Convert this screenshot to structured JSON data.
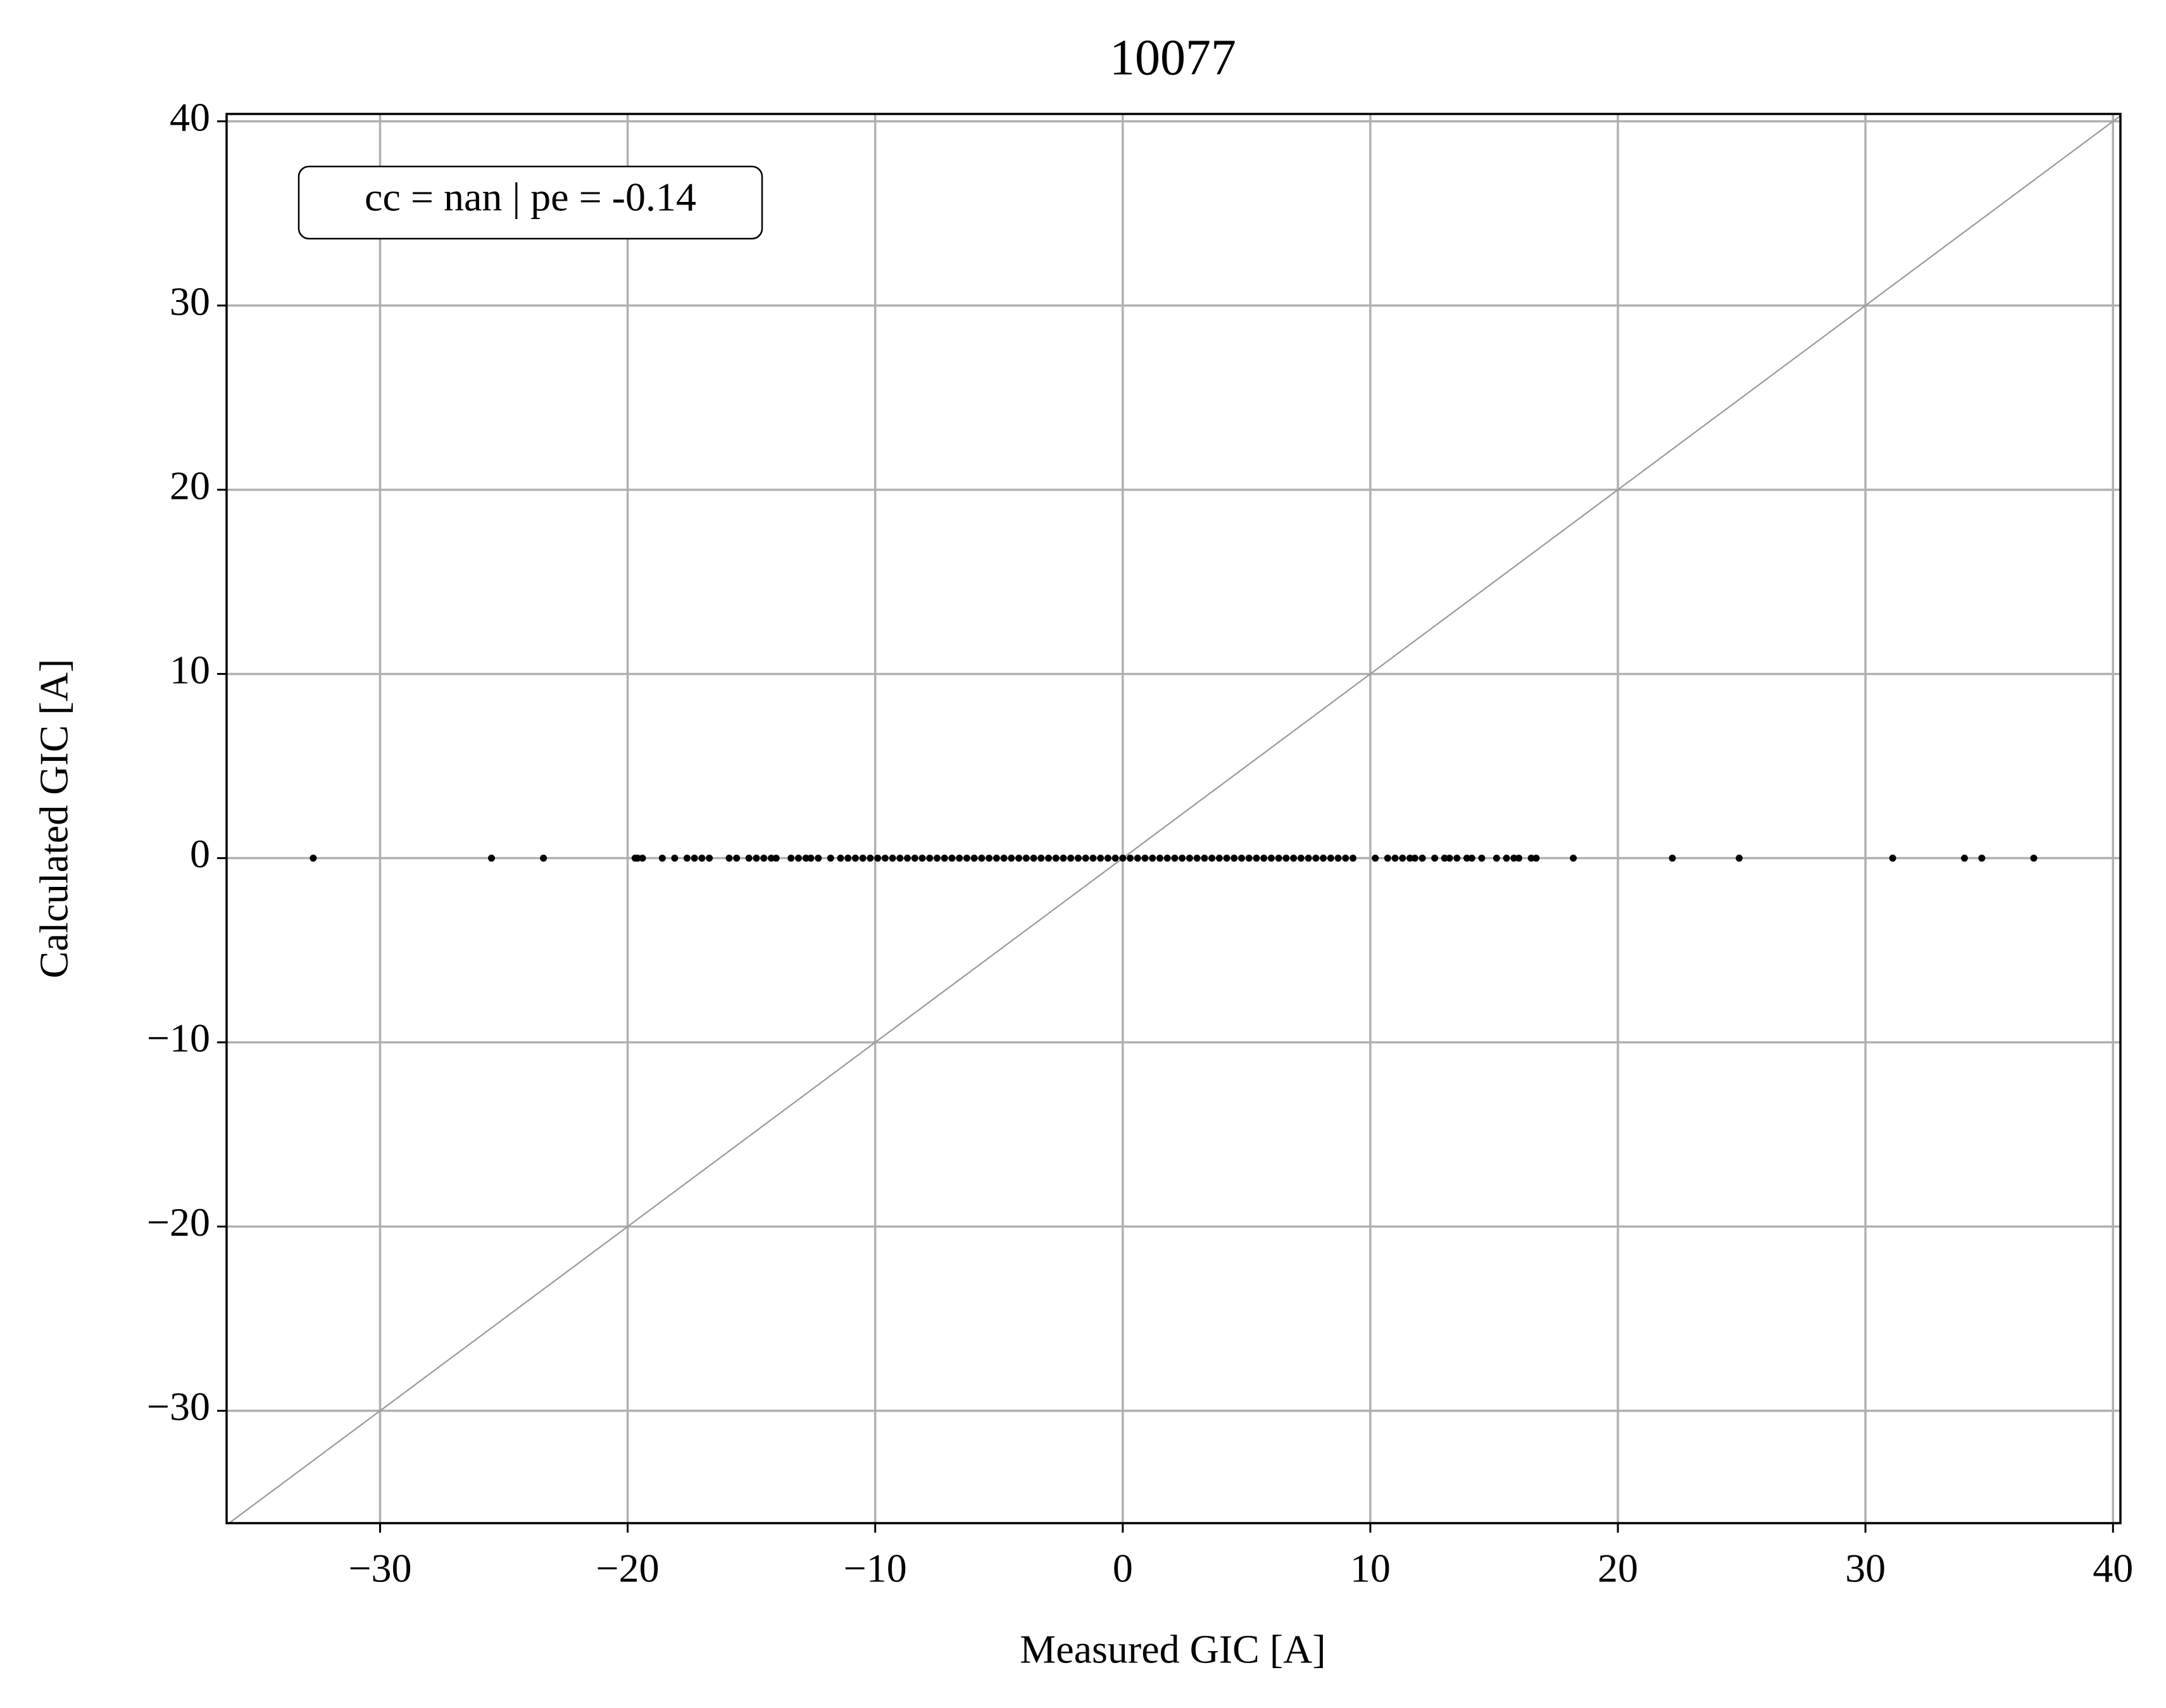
{
  "chart_data": {
    "type": "scatter",
    "title": "10077",
    "x_label": "Measured GIC [A]",
    "y_label": "Calculated GIC [A]",
    "annotation": "cc = nan | pe = -0.14",
    "color": "#000000",
    "grid": true,
    "xlim": [
      -36.2,
      40.3
    ],
    "ylim": [
      -36.1,
      40.4
    ],
    "xticks": [
      {
        "value": -30,
        "label": "−30"
      },
      {
        "value": -20,
        "label": "−20"
      },
      {
        "value": -10,
        "label": "−10"
      },
      0,
      10,
      20,
      30,
      40
    ],
    "yticks": [
      {
        "value": -30,
        "label": "−30"
      },
      {
        "value": -20,
        "label": "−20"
      },
      {
        "value": -10,
        "label": "−10"
      },
      0,
      10,
      20,
      30,
      40
    ],
    "x": [
      -32.7,
      -25.5,
      -23.4,
      -19.7,
      -19.6,
      -19.4,
      -18.6,
      -18.1,
      -17.6,
      -17.3,
      -17.0,
      -16.7,
      -15.9,
      -15.6,
      -15.1,
      -14.8,
      -14.5,
      -14.2,
      -14.0,
      -13.4,
      -13.1,
      -12.8,
      -12.6,
      -12.3,
      -11.8,
      -11.4,
      -11.1,
      -10.8,
      -10.5,
      -10.2,
      -9.9,
      -9.6,
      -9.3,
      -9.0,
      -8.7,
      -8.4,
      -8.1,
      -7.8,
      -7.5,
      -7.2,
      -6.9,
      -6.6,
      -6.3,
      -6.0,
      -5.7,
      -5.4,
      -5.1,
      -4.8,
      -4.5,
      -4.2,
      -3.9,
      -3.6,
      -3.3,
      -3.0,
      -2.7,
      -2.4,
      -2.1,
      -1.8,
      -1.5,
      -1.2,
      -0.9,
      -0.6,
      -0.3,
      0.0,
      0.3,
      0.6,
      0.9,
      1.2,
      1.5,
      1.8,
      2.1,
      2.4,
      2.7,
      3.0,
      3.3,
      3.6,
      3.9,
      4.2,
      4.5,
      4.8,
      5.1,
      5.4,
      5.7,
      6.0,
      6.3,
      6.6,
      6.9,
      7.2,
      7.5,
      7.8,
      8.1,
      8.4,
      8.7,
      9.0,
      9.3,
      10.2,
      10.7,
      11.0,
      11.3,
      11.6,
      11.8,
      12.1,
      12.6,
      13.0,
      13.2,
      13.5,
      13.9,
      14.1,
      14.5,
      15.1,
      15.5,
      15.8,
      16.0,
      16.5,
      16.7,
      18.2,
      22.2,
      24.9,
      31.1,
      34.0,
      34.7,
      36.8
    ],
    "values": [
      0,
      0,
      0,
      0,
      0,
      0,
      0,
      0,
      0,
      0,
      0,
      0,
      0,
      0,
      0,
      0,
      0,
      0,
      0,
      0,
      0,
      0,
      0,
      0,
      0,
      0,
      0,
      0,
      0,
      0,
      0,
      0,
      0,
      0,
      0,
      0,
      0,
      0,
      0,
      0,
      0,
      0,
      0,
      0,
      0,
      0,
      0,
      0,
      0,
      0,
      0,
      0,
      0,
      0,
      0,
      0,
      0,
      0,
      0,
      0,
      0,
      0,
      0,
      0,
      0,
      0,
      0,
      0,
      0,
      0,
      0,
      0,
      0,
      0,
      0,
      0,
      0,
      0,
      0,
      0,
      0,
      0,
      0,
      0,
      0,
      0,
      0,
      0,
      0,
      0,
      0,
      0,
      0,
      0,
      0,
      0,
      0,
      0,
      0,
      0,
      0,
      0,
      0,
      0,
      0,
      0,
      0,
      0,
      0,
      0,
      0,
      0,
      0,
      0,
      0,
      0,
      0,
      0,
      0,
      0,
      0,
      0
    ]
  }
}
